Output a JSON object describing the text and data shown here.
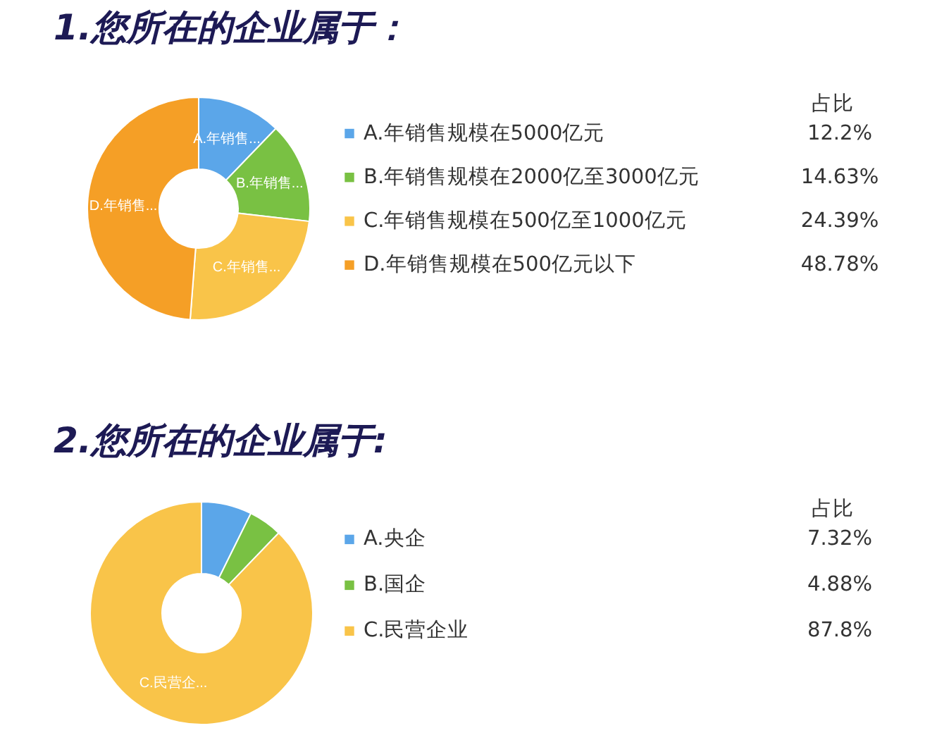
{
  "chart_data": [
    {
      "type": "donut",
      "title": "1.您所在的企业属于：",
      "legend_title": "占比",
      "legend": "right",
      "categories": [
        "A.年销售规模在5000亿元",
        "B.年销售规模在2000亿至3000亿元",
        "C.年销售规模在500亿至1000亿元",
        "D.年销售规模在500亿元以下"
      ],
      "values": [
        12.2,
        14.63,
        24.39,
        48.78
      ],
      "value_labels": [
        "12.2%",
        "14.63%",
        "24.39%",
        "48.78%"
      ],
      "colors": [
        "#5ba6e9",
        "#79c143",
        "#f9c449",
        "#f59f26"
      ],
      "annotations": [
        {
          "text": "A.年销售...",
          "x": "A.年销售规模在5000亿元"
        },
        {
          "text": "B.年销售...",
          "x": "B.年销售规模在2000亿至3000亿元"
        },
        {
          "text": "C.年销售...",
          "x": "C.年销售规模在500亿至1000亿元"
        },
        {
          "text": "D.年销售...",
          "x": "D.年销售规模在500亿元以下"
        }
      ]
    },
    {
      "type": "donut",
      "title": "2.您所在的企业属于:",
      "legend_title": "占比",
      "legend": "right",
      "categories": [
        "A.央企",
        "B.国企",
        "C.民营企业"
      ],
      "values": [
        7.32,
        4.88,
        87.8
      ],
      "value_labels": [
        "7.32%",
        "4.88%",
        "87.8%"
      ],
      "colors": [
        "#5ba6e9",
        "#79c143",
        "#f9c449"
      ],
      "annotations": [
        {
          "text": "C.民营企...",
          "x": "C.民营企业"
        }
      ]
    }
  ]
}
